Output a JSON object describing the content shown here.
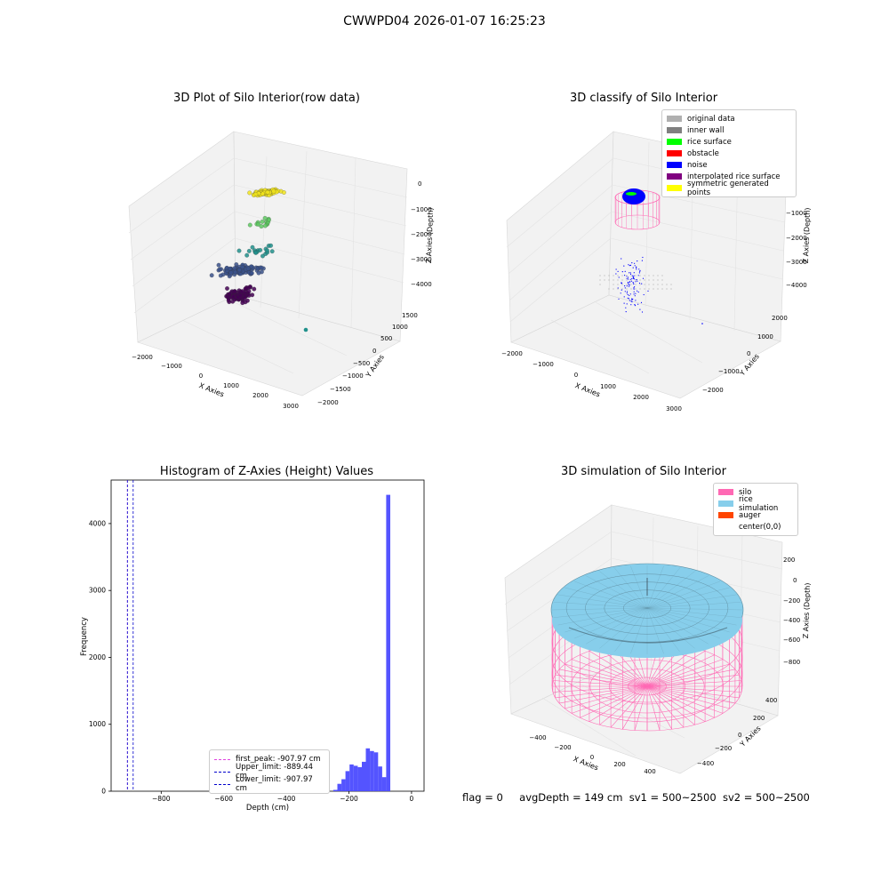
{
  "suptitle": "CWWPD04 2026-01-07 16:25:23",
  "footer": {
    "flag": "flag = 0",
    "avg": "avgDepth = 149 cm",
    "sv1": "sv1 = 500~2500",
    "sv2": "sv2 = 500~2500"
  },
  "chart_data": [
    {
      "type": "scatter",
      "title": "3D Plot of Silo Interior(row data)",
      "xlabel": "X Axies",
      "ylabel": "Y Axies",
      "zlabel": "Z Axies (Depth)",
      "xticks": [
        "−2000",
        "−1000",
        "0",
        "1000",
        "2000",
        "3000"
      ],
      "yticks": [
        "1500",
        "1000",
        "500",
        "0",
        "−500",
        "−1000",
        "−1500",
        "−2000"
      ],
      "zticks": [
        "0",
        "−1000",
        "−2000",
        "−3000",
        "−4000"
      ],
      "colormap": "viridis",
      "clusters": [
        {
          "x": 300,
          "y": -300,
          "z": -200,
          "n": 80,
          "color": "#f2e51d"
        },
        {
          "x": 250,
          "y": -250,
          "z": -1300,
          "n": 14,
          "color": "#5ec962"
        },
        {
          "x": 200,
          "y": -250,
          "z": -2400,
          "n": 18,
          "color": "#21918c"
        },
        {
          "x": 0,
          "y": 0,
          "z": -3000,
          "n": 110,
          "color": "#3b528b"
        },
        {
          "x": 200,
          "y": 100,
          "z": -3900,
          "n": 90,
          "color": "#440154"
        }
      ]
    },
    {
      "type": "scatter",
      "title": "3D classify of Silo Interior",
      "xlabel": "X Axies",
      "ylabel": "Y Axies",
      "zlabel": "Z Axies (Depth)",
      "xticks": [
        "−2000",
        "−1000",
        "0",
        "1000",
        "2000",
        "3000"
      ],
      "yticks": [
        "2000",
        "1000",
        "0",
        "−1000",
        "−2000"
      ],
      "zticks": [
        "0",
        "−1000",
        "−2000",
        "−3000",
        "−4000"
      ],
      "legend": [
        {
          "label": "original data",
          "color": "#b0b0b0"
        },
        {
          "label": "inner wall",
          "color": "#808080"
        },
        {
          "label": "rice surface",
          "color": "#00ff00"
        },
        {
          "label": "obstacle",
          "color": "#ff0000"
        },
        {
          "label": "noise",
          "color": "#0000ff"
        },
        {
          "label": "interpolated rice surface",
          "color": "#800080"
        },
        {
          "label": "symmetric generated points",
          "color": "#ffff00"
        }
      ]
    },
    {
      "type": "bar",
      "title": "Histogram of Z-Axies (Height) Values",
      "xlabel": "Depth (cm)",
      "ylabel": "Frequency",
      "xlim": [
        -960,
        40
      ],
      "ylim": [
        0,
        4650
      ],
      "xticks": [
        "−800",
        "−600",
        "−400",
        "−200",
        "0"
      ],
      "yticks": [
        "0",
        "1000",
        "2000",
        "3000",
        "4000"
      ],
      "bar_color": "#4b4bff",
      "bins": [
        {
          "x0": -250,
          "x1": -237,
          "y": 20
        },
        {
          "x0": -237,
          "x1": -224,
          "y": 110
        },
        {
          "x0": -224,
          "x1": -211,
          "y": 180
        },
        {
          "x0": -211,
          "x1": -198,
          "y": 300
        },
        {
          "x0": -198,
          "x1": -185,
          "y": 400
        },
        {
          "x0": -185,
          "x1": -172,
          "y": 380
        },
        {
          "x0": -172,
          "x1": -159,
          "y": 360
        },
        {
          "x0": -159,
          "x1": -146,
          "y": 440
        },
        {
          "x0": -146,
          "x1": -133,
          "y": 640
        },
        {
          "x0": -133,
          "x1": -120,
          "y": 600
        },
        {
          "x0": -120,
          "x1": -107,
          "y": 580
        },
        {
          "x0": -107,
          "x1": -94,
          "y": 370
        },
        {
          "x0": -94,
          "x1": -81,
          "y": 210
        },
        {
          "x0": -81,
          "x1": -68,
          "y": 4430
        }
      ],
      "vlines": [
        {
          "x": -907.97,
          "color": "#e040e0",
          "label": "first_peak: -907.97 cm"
        },
        {
          "x": -889.44,
          "color": "#0000cc",
          "label": "Upper_limit: -889.44 cm"
        },
        {
          "x": -907.97,
          "color": "#0000cc",
          "label": "Lower_limit: -907.97 cm"
        }
      ]
    },
    {
      "type": "surface",
      "title": "3D simulation of Silo Interior",
      "xlabel": "X Axies",
      "ylabel": "Y Axies",
      "zlabel": "Z Axies (Depth)",
      "xticks": [
        "−400",
        "−200",
        "0",
        "200",
        "400"
      ],
      "yticks": [
        "400",
        "200",
        "0",
        "−200",
        "−400"
      ],
      "zticks": [
        "200",
        "0",
        "−200",
        "−400",
        "−600",
        "−800"
      ],
      "legend": [
        {
          "label": "silo",
          "color": "#ff69b4"
        },
        {
          "label": "rice simulation",
          "color": "#87ceeb"
        },
        {
          "label": "auger",
          "color": "#ff4500"
        },
        {
          "label": "center(0,0)",
          "color": ""
        }
      ]
    }
  ]
}
